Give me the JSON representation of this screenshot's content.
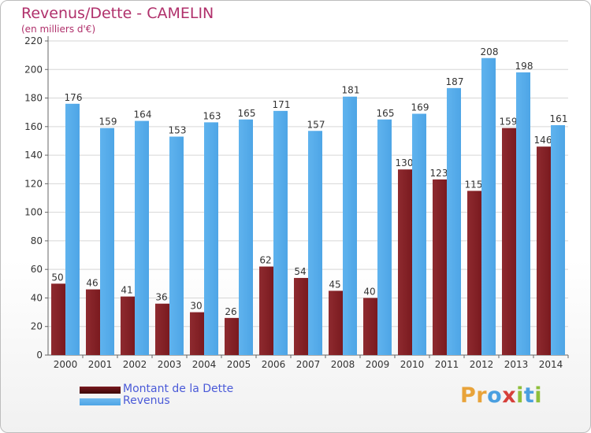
{
  "header": {
    "title": "Revenus/Dette - CAMELIN",
    "subtitle": "(en milliers d'€)"
  },
  "colors": {
    "debt": "#7a1a1f",
    "revenue": "#4ea5e6",
    "title": "#b0306b",
    "legend_text": "#4a5ad8"
  },
  "legend": {
    "debt_label": "Montant de la Dette",
    "revenue_label": "Revenus"
  },
  "logo": {
    "text": "Proxiti"
  },
  "chart_data": {
    "type": "bar",
    "categories": [
      "2000",
      "2001",
      "2002",
      "2003",
      "2004",
      "2005",
      "2006",
      "2007",
      "2008",
      "2009",
      "2010",
      "2011",
      "2012",
      "2013",
      "2014"
    ],
    "series": [
      {
        "name": "Montant de la Dette",
        "values": [
          50,
          46,
          41,
          36,
          30,
          26,
          62,
          54,
          45,
          40,
          130,
          123,
          115,
          159,
          146
        ]
      },
      {
        "name": "Revenus",
        "values": [
          176,
          159,
          164,
          153,
          163,
          165,
          171,
          157,
          181,
          165,
          169,
          187,
          208,
          198,
          161
        ]
      }
    ],
    "ylim": [
      0,
      220
    ],
    "yticks": [
      0,
      20,
      40,
      60,
      80,
      100,
      120,
      140,
      160,
      180,
      200,
      220
    ],
    "grid": true
  }
}
